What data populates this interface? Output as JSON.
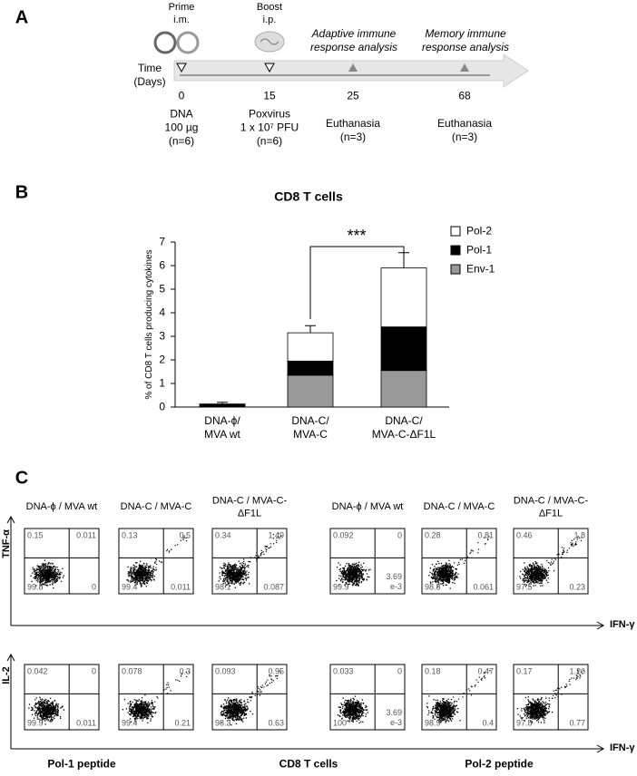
{
  "panel_a": {
    "label": "A",
    "prime": [
      "Prime",
      "i.m."
    ],
    "boost": [
      "Boost",
      "i.p."
    ],
    "adaptive": "Adaptive immune\nresponse analysis",
    "memory": "Memory immune\nresponse analysis",
    "time_label": "Time\n(Days)",
    "days": [
      "0",
      "15",
      "25",
      "68"
    ],
    "notes": [
      "DNA\n100 µg\n(n=6)",
      "Poxvirus\n1 x 10⁷ PFU\n(n=6)",
      "Euthanasia\n(n=3)",
      "Euthanasia\n(n=3)"
    ]
  },
  "chart_data": {
    "type": "stacked-bar",
    "panel_label": "B",
    "title": "CD8 T cells",
    "ylabel": "% of CD8 T cells producing cytokines",
    "categories": [
      "DNA-ϕ/\nMVA wt",
      "DNA-C/\nMVA-C",
      "DNA-C/\nMVA-C-ΔF1L"
    ],
    "series": [
      {
        "name": "Env-1",
        "color": "#999999",
        "values": [
          0.02,
          1.35,
          1.55
        ]
      },
      {
        "name": "Pol-1",
        "color": "#000000",
        "values": [
          0.1,
          0.6,
          1.85
        ]
      },
      {
        "name": "Pol-2",
        "color": "#ffffff",
        "values": [
          0.01,
          1.2,
          2.5
        ]
      }
    ],
    "errors": [
      0.07,
      0.3,
      0.65
    ],
    "ylim": [
      0,
      7
    ],
    "yticks": [
      0,
      1,
      2,
      3,
      4,
      5,
      6,
      7
    ],
    "significance": "***"
  },
  "panel_c": {
    "label": "C",
    "row_labels": [
      "TNF-α",
      "IL-2"
    ],
    "x_label": "IFN-γ",
    "column_headers": [
      "DNA-ϕ / MVA wt",
      "DNA-C / MVA-C",
      "DNA-C / MVA-C-\nΔF1L",
      "DNA-ϕ / MVA wt",
      "DNA-C / MVA-C",
      "DNA-C / MVA-C-\nΔF1L"
    ],
    "groups": [
      "Pol-1 peptide",
      "CD8 T cells",
      "Pol-2 peptide"
    ],
    "quadrants": [
      [
        [
          "0.15",
          "0.011",
          "99.8",
          "0"
        ],
        [
          "0.13",
          "0.5",
          "99.4",
          "0.011"
        ],
        [
          "0.34",
          "1.49",
          "98.1",
          "0.087"
        ],
        [
          "0.092",
          "0",
          "99.9",
          "3.69\ne-3"
        ],
        [
          "0.28",
          "0.81",
          "98.8",
          "0.061"
        ],
        [
          "0.46",
          "1.8",
          "97.5",
          "0.23"
        ]
      ],
      [
        [
          "0.042",
          "0",
          "99.9",
          "0.011"
        ],
        [
          "0.078",
          "0.3",
          "99.4",
          "0.21"
        ],
        [
          "0.093",
          "0.95",
          "98.3",
          "0.63"
        ],
        [
          "0.033",
          "0",
          "100",
          "3.69\ne-3"
        ],
        [
          "0.18",
          "0.47",
          "98.9",
          "0.4"
        ],
        [
          "0.17",
          "1.26",
          "97.8",
          "0.77"
        ]
      ]
    ]
  }
}
